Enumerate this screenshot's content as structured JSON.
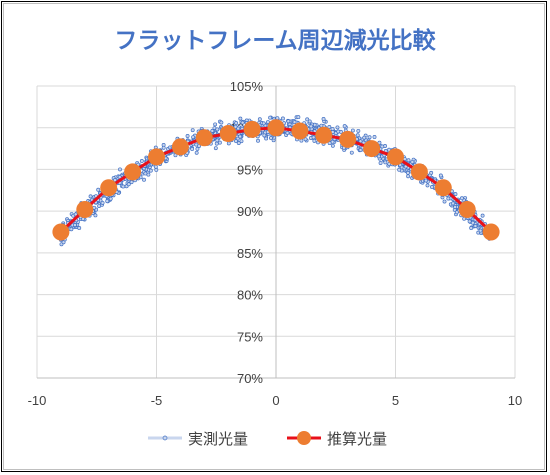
{
  "chart_data": {
    "type": "scatter",
    "title": "フラットフレーム周辺減光比較",
    "xlabel": "",
    "ylabel": "",
    "xlim": [
      -10,
      10
    ],
    "ylim": [
      0.7,
      1.05
    ],
    "x_ticks": [
      -10,
      -5,
      0,
      5,
      10
    ],
    "y_ticks": [
      0.7,
      0.75,
      0.8,
      0.85,
      0.9,
      0.95,
      1.0,
      1.05
    ],
    "x_tick_labels": [
      "-10",
      "-5",
      "0",
      "5",
      "10"
    ],
    "y_tick_labels": [
      "70%",
      "75%",
      "80%",
      "85%",
      "90%",
      "95%",
      "100%",
      "105%"
    ],
    "grid": "vertical and horizontal",
    "legend_position": "bottom",
    "series": [
      {
        "name": "実測光量",
        "style": "scatter",
        "color": "#4472c4",
        "x_range": [
          -9,
          9
        ],
        "points_estimated": [
          {
            "x": -9,
            "y": 0.871
          },
          {
            "x": -8,
            "y": 0.899
          },
          {
            "x": -7,
            "y": 0.925
          },
          {
            "x": -6,
            "y": 0.945
          },
          {
            "x": -5,
            "y": 0.962
          },
          {
            "x": -4,
            "y": 0.976
          },
          {
            "x": -3,
            "y": 0.987
          },
          {
            "x": -2,
            "y": 0.994
          },
          {
            "x": -1,
            "y": 0.998
          },
          {
            "x": 0,
            "y": 1.0
          },
          {
            "x": 1,
            "y": 0.998
          },
          {
            "x": 2,
            "y": 0.994
          },
          {
            "x": 3,
            "y": 0.987
          },
          {
            "x": 4,
            "y": 0.976
          },
          {
            "x": 5,
            "y": 0.962
          },
          {
            "x": 6,
            "y": 0.945
          },
          {
            "x": 7,
            "y": 0.925
          },
          {
            "x": 8,
            "y": 0.899
          },
          {
            "x": 9,
            "y": 0.871
          }
        ]
      },
      {
        "name": "推算光量",
        "style": "line-marker",
        "line_color": "#e8101a",
        "marker_color": "#ed7d31",
        "x": [
          -9,
          -8,
          -7,
          -6,
          -5,
          -4,
          -3,
          -2,
          -1,
          0,
          1,
          2,
          3,
          4,
          5,
          6,
          7,
          8,
          9
        ],
        "y": [
          0.875,
          0.902,
          0.928,
          0.947,
          0.965,
          0.977,
          0.988,
          0.993,
          0.998,
          1.0,
          0.996,
          0.991,
          0.986,
          0.975,
          0.965,
          0.947,
          0.928,
          0.902,
          0.875
        ]
      }
    ]
  }
}
